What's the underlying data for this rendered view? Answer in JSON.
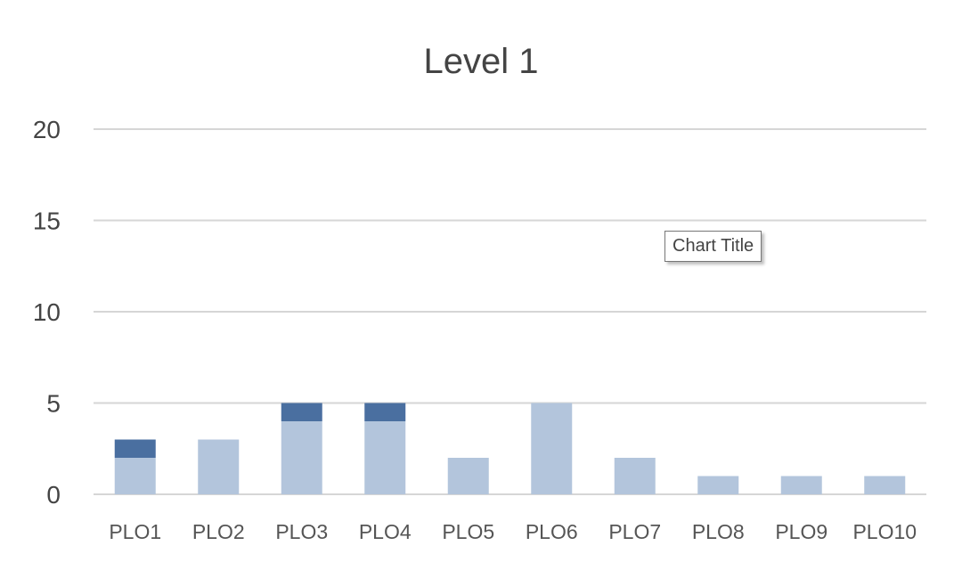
{
  "chart_data": {
    "type": "bar",
    "stacked": true,
    "title": "Level 1",
    "xlabel": "",
    "ylabel": "",
    "ylim": [
      0,
      20
    ],
    "yticks": [
      0,
      5,
      10,
      15,
      20
    ],
    "grid": true,
    "categories": [
      "PLO1",
      "PLO2",
      "PLO3",
      "PLO4",
      "PLO5",
      "PLO6",
      "PLO7",
      "PLO8",
      "PLO9",
      "PLO10"
    ],
    "series": [
      {
        "values": [
          2,
          3,
          4,
          4,
          2,
          5,
          2,
          1,
          1,
          1
        ],
        "color": "#b3c5dc"
      },
      {
        "values": [
          1,
          0,
          1,
          1,
          0,
          0,
          0,
          0,
          0,
          0
        ],
        "color": "#4a6fa0"
      }
    ]
  },
  "tooltip": "Chart Title"
}
